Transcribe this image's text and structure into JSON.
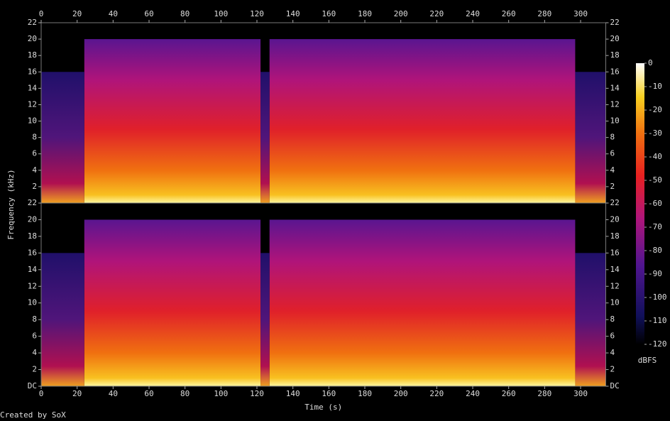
{
  "chart_data": [
    {
      "type": "spectrogram",
      "ylabel": "Frequency (kHz)",
      "xlim": [
        0,
        314
      ],
      "xticks": [
        0,
        20,
        40,
        60,
        80,
        100,
        120,
        140,
        160,
        180,
        200,
        220,
        240,
        260,
        280,
        300
      ],
      "ylim": [
        0,
        22
      ],
      "yticks": [
        2,
        4,
        6,
        8,
        10,
        12,
        14,
        16,
        18,
        20,
        22
      ]
    },
    {
      "type": "spectrogram",
      "xlabel": "Time (s)",
      "xlim": [
        0,
        314
      ],
      "xticks": [
        0,
        20,
        40,
        60,
        80,
        100,
        120,
        140,
        160,
        180,
        200,
        220,
        240,
        260,
        280,
        300
      ],
      "ylim": [
        0,
        22
      ],
      "yticks": [
        {
          "value": 0,
          "label": "DC"
        },
        2,
        4,
        6,
        8,
        10,
        12,
        14,
        16,
        18,
        20,
        22
      ]
    }
  ],
  "colorbar": {
    "label": "dBFS",
    "lim": [
      -120,
      0
    ],
    "ticks": [
      0,
      -10,
      -20,
      -30,
      -40,
      -50,
      -60,
      -70,
      -80,
      -90,
      -100,
      -110,
      -120
    ]
  },
  "footer": "Created by SoX"
}
